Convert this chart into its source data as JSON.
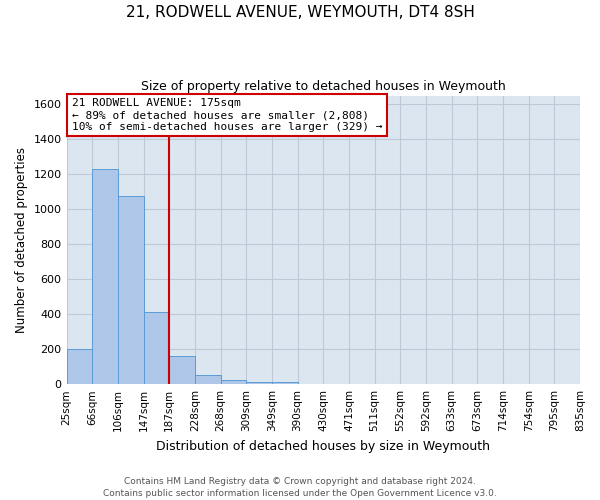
{
  "title": "21, RODWELL AVENUE, WEYMOUTH, DT4 8SH",
  "subtitle": "Size of property relative to detached houses in Weymouth",
  "xlabel": "Distribution of detached houses by size in Weymouth",
  "ylabel": "Number of detached properties",
  "bar_values": [
    200,
    1230,
    1075,
    410,
    160,
    50,
    25,
    15,
    10,
    0,
    0,
    0,
    0,
    0,
    0,
    0,
    0,
    0,
    0,
    0
  ],
  "bin_labels": [
    "25sqm",
    "66sqm",
    "106sqm",
    "147sqm",
    "187sqm",
    "228sqm",
    "268sqm",
    "309sqm",
    "349sqm",
    "390sqm",
    "430sqm",
    "471sqm",
    "511sqm",
    "552sqm",
    "592sqm",
    "633sqm",
    "673sqm",
    "714sqm",
    "754sqm",
    "795sqm",
    "835sqm"
  ],
  "bar_color": "#aec6e8",
  "bar_edge_color": "#5b9bd5",
  "vline_x": 4,
  "vline_color": "#cc0000",
  "annotation_line1": "21 RODWELL AVENUE: 175sqm",
  "annotation_line2": "← 89% of detached houses are smaller (2,808)",
  "annotation_line3": "10% of semi-detached houses are larger (329) →",
  "annotation_box_color": "#cc0000",
  "ylim": [
    0,
    1650
  ],
  "yticks": [
    0,
    200,
    400,
    600,
    800,
    1000,
    1200,
    1400,
    1600
  ],
  "footer1": "Contains HM Land Registry data © Crown copyright and database right 2024.",
  "footer2": "Contains public sector information licensed under the Open Government Licence v3.0.",
  "background_color": "#ffffff",
  "plot_bg_color": "#dce6f0",
  "grid_color": "#c0c8d8"
}
